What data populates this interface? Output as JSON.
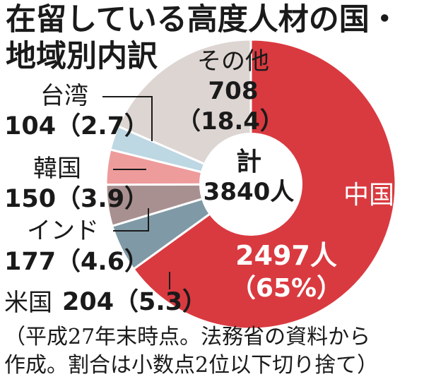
{
  "title": {
    "line1": "在留している高度人材の国・",
    "line2": "地域別内訳"
  },
  "center": {
    "line1": "計",
    "line2": "3840人"
  },
  "labels": {
    "china": {
      "name": "中国",
      "value": "2497人",
      "pct": "（65%）"
    },
    "other": {
      "name": "その他",
      "value": "708",
      "pct": "（18.4）"
    },
    "taiwan": {
      "name": "台湾",
      "value": "104（2.7）"
    },
    "korea": {
      "name": "韓国",
      "value": "150（3.9）"
    },
    "india": {
      "name": "インド",
      "value": "177（4.6）"
    },
    "usa": {
      "name": "米国",
      "value": "204（5.3）"
    }
  },
  "footnote": {
    "line1": "（平成27年末時点。法務省の資料から",
    "line2": "作成。割合は小数点2位以下切り捨て）"
  },
  "chart_data": {
    "type": "pie",
    "total": 3840,
    "slices": [
      {
        "name": "中国",
        "value": 2497,
        "percent": 65,
        "color": "#d93a40"
      },
      {
        "name": "米国",
        "value": 204,
        "percent": 5.3,
        "color": "#7f9aa6"
      },
      {
        "name": "インド",
        "value": 177,
        "percent": 4.6,
        "color": "#a99090"
      },
      {
        "name": "韓国",
        "value": 150,
        "percent": 3.9,
        "color": "#ee9b9c"
      },
      {
        "name": "台湾",
        "value": 104,
        "percent": 2.7,
        "color": "#bdd7e3"
      },
      {
        "name": "その他",
        "value": 708,
        "percent": 18.4,
        "color": "#ddd5d2"
      }
    ],
    "donut": true
  }
}
